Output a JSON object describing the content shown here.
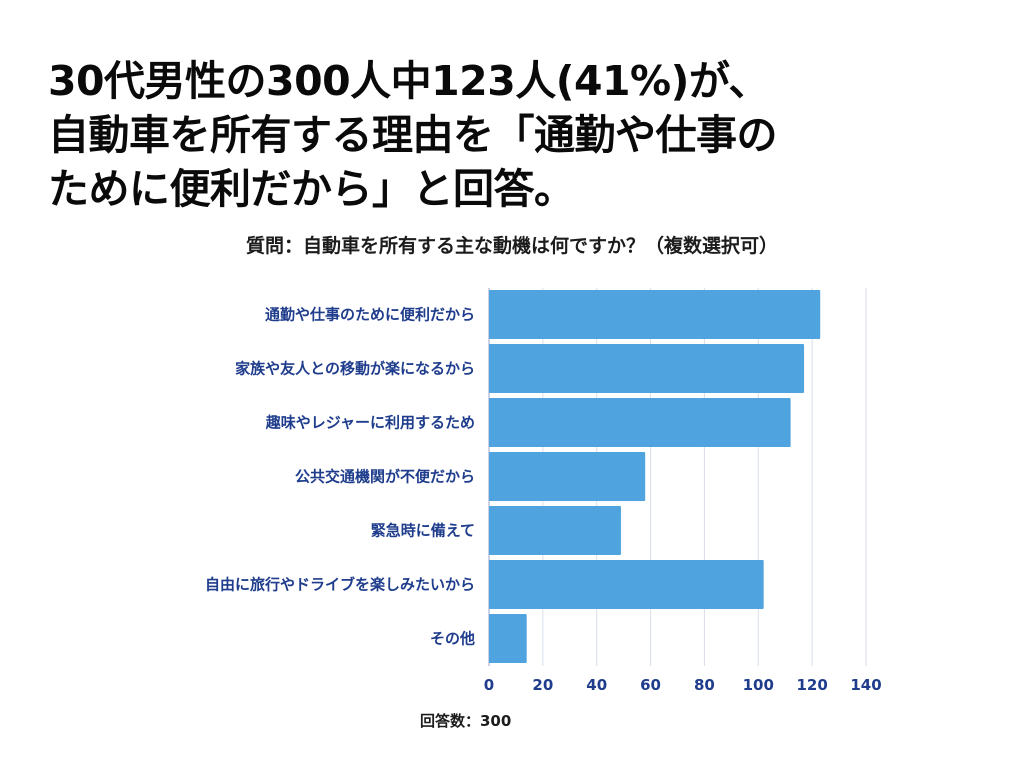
{
  "headline": {
    "line1": "30代男性の300人中123人(41%)が、",
    "line2": "自動車を所有する理由を「通勤や仕事の",
    "line3": "ために便利だから」と回答。"
  },
  "question": "質問：自動車を所有する主な動機は何ですか？（複数選択可）",
  "respondents": "回答数：300",
  "chart_data": {
    "type": "bar",
    "orientation": "horizontal",
    "categories": [
      "通勤や仕事のために便利だから",
      "家族や友人との移動が楽になるから",
      "趣味やレジャーに利用するため",
      "公共交通機関が不便だから",
      "緊急時に備えて",
      "自由に旅行やドライブを楽しみたいから",
      "その他"
    ],
    "values": [
      123,
      117,
      112,
      58,
      49,
      102,
      14
    ],
    "xlim": [
      0,
      140
    ],
    "xticks": [
      "0",
      "20",
      "40",
      "60",
      "80",
      "100",
      "120",
      "140"
    ],
    "grid": true,
    "bar_color": "#4fa3df",
    "label_color": "#1f3d8c"
  }
}
